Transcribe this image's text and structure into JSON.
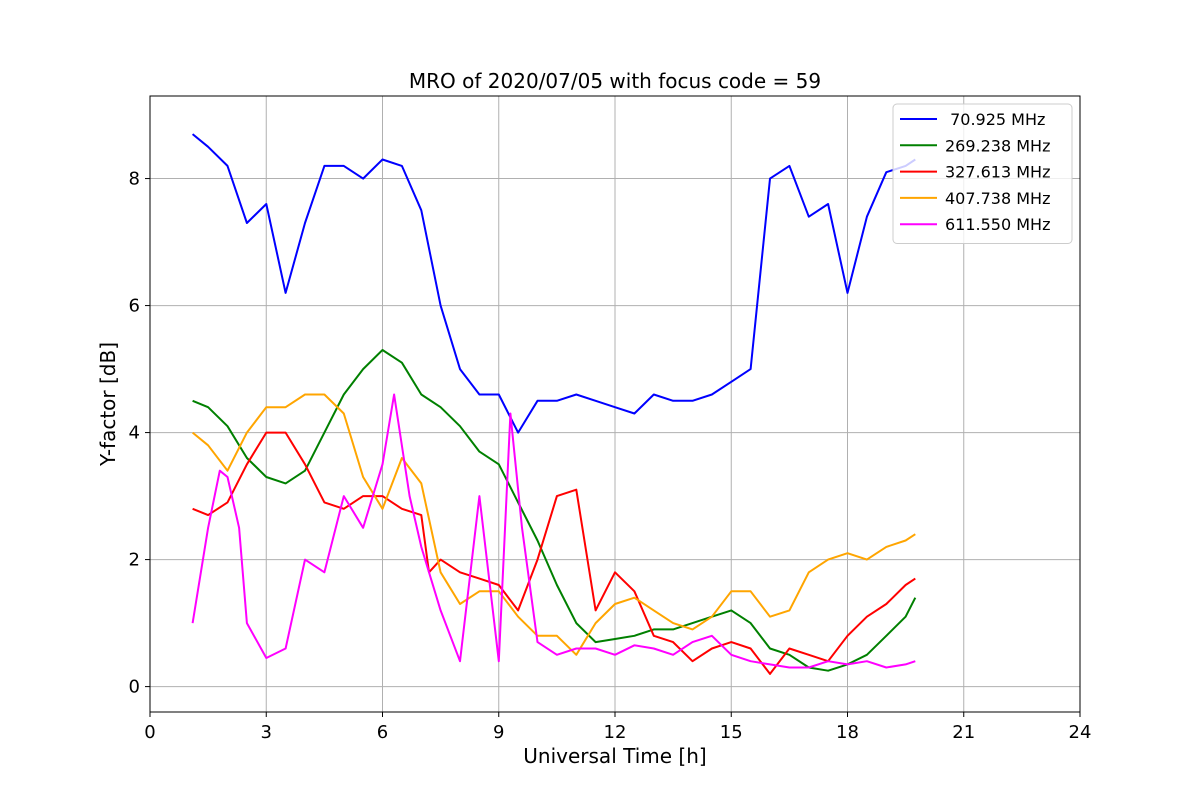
{
  "chart_data": {
    "type": "line",
    "title": "MRO of 2020/07/05 with focus code = 59",
    "xlabel": "Universal Time [h]",
    "ylabel": "Y-factor [dB]",
    "xlim": [
      0,
      24
    ],
    "ylim": [
      -0.4,
      9.3
    ],
    "xticks": [
      0,
      3,
      6,
      9,
      12,
      15,
      18,
      21,
      24
    ],
    "yticks": [
      0,
      2,
      4,
      6,
      8
    ],
    "grid": true,
    "legend_position": "top-right",
    "series": [
      {
        "name": " 70.925 MHz",
        "color": "#0000ff",
        "x": [
          1.1,
          1.5,
          2.0,
          2.5,
          3.0,
          3.5,
          4.0,
          4.5,
          5.0,
          5.5,
          6.0,
          6.5,
          7.0,
          7.5,
          8.0,
          8.5,
          9.0,
          9.5,
          10.0,
          10.5,
          11.0,
          11.5,
          12.0,
          12.5,
          13.0,
          13.5,
          14.0,
          14.5,
          15.0,
          15.5,
          16.0,
          16.5,
          17.0,
          17.5,
          18.0,
          18.5,
          19.0,
          19.5,
          19.75
        ],
        "y": [
          8.7,
          8.5,
          8.2,
          7.3,
          7.6,
          6.2,
          7.3,
          8.2,
          8.2,
          8.0,
          8.3,
          8.2,
          7.5,
          6.0,
          5.0,
          4.6,
          4.6,
          4.0,
          4.5,
          4.5,
          4.6,
          4.5,
          4.4,
          4.3,
          4.6,
          4.5,
          4.5,
          4.6,
          4.8,
          5.0,
          8.0,
          8.2,
          7.4,
          7.6,
          6.2,
          7.4,
          8.1,
          8.2,
          8.3
        ]
      },
      {
        "name": "269.238 MHz",
        "color": "#008000",
        "x": [
          1.1,
          1.5,
          2.0,
          2.5,
          3.0,
          3.5,
          4.0,
          4.5,
          5.0,
          5.5,
          6.0,
          6.5,
          7.0,
          7.5,
          8.0,
          8.5,
          9.0,
          9.5,
          10.0,
          10.5,
          11.0,
          11.5,
          12.0,
          12.5,
          13.0,
          13.5,
          14.0,
          14.5,
          15.0,
          15.5,
          16.0,
          16.5,
          17.0,
          17.5,
          18.0,
          18.5,
          19.0,
          19.5,
          19.75
        ],
        "y": [
          4.5,
          4.4,
          4.1,
          3.6,
          3.3,
          3.2,
          3.4,
          4.0,
          4.6,
          5.0,
          5.3,
          5.1,
          4.6,
          4.4,
          4.1,
          3.7,
          3.5,
          2.9,
          2.3,
          1.6,
          1.0,
          0.7,
          0.75,
          0.8,
          0.9,
          0.9,
          1.0,
          1.1,
          1.2,
          1.0,
          0.6,
          0.5,
          0.3,
          0.25,
          0.35,
          0.5,
          0.8,
          1.1,
          1.4
        ]
      },
      {
        "name": "327.613 MHz",
        "color": "#ff0000",
        "x": [
          1.1,
          1.5,
          2.0,
          2.5,
          3.0,
          3.5,
          4.0,
          4.5,
          5.0,
          5.5,
          6.0,
          6.5,
          7.0,
          7.2,
          7.5,
          8.0,
          8.5,
          9.0,
          9.5,
          10.0,
          10.5,
          11.0,
          11.5,
          12.0,
          12.5,
          13.0,
          13.5,
          14.0,
          14.5,
          15.0,
          15.5,
          16.0,
          16.5,
          17.0,
          17.5,
          18.0,
          18.5,
          19.0,
          19.5,
          19.75
        ],
        "y": [
          2.8,
          2.7,
          2.9,
          3.5,
          4.0,
          4.0,
          3.5,
          2.9,
          2.8,
          3.0,
          3.0,
          2.8,
          2.7,
          1.8,
          2.0,
          1.8,
          1.7,
          1.6,
          1.2,
          2.0,
          3.0,
          3.1,
          1.2,
          1.8,
          1.5,
          0.8,
          0.7,
          0.4,
          0.6,
          0.7,
          0.6,
          0.2,
          0.6,
          0.5,
          0.4,
          0.8,
          1.1,
          1.3,
          1.6,
          1.7
        ]
      },
      {
        "name": "407.738 MHz",
        "color": "#ffa500",
        "x": [
          1.1,
          1.5,
          2.0,
          2.5,
          3.0,
          3.5,
          4.0,
          4.5,
          5.0,
          5.5,
          6.0,
          6.5,
          7.0,
          7.5,
          8.0,
          8.5,
          9.0,
          9.5,
          10.0,
          10.5,
          11.0,
          11.5,
          12.0,
          12.5,
          13.0,
          13.5,
          14.0,
          14.5,
          15.0,
          15.5,
          16.0,
          16.5,
          17.0,
          17.5,
          18.0,
          18.5,
          19.0,
          19.5,
          19.75
        ],
        "y": [
          4.0,
          3.8,
          3.4,
          4.0,
          4.4,
          4.4,
          4.6,
          4.6,
          4.3,
          3.3,
          2.8,
          3.6,
          3.2,
          1.8,
          1.3,
          1.5,
          1.5,
          1.1,
          0.8,
          0.8,
          0.5,
          1.0,
          1.3,
          1.4,
          1.2,
          1.0,
          0.9,
          1.1,
          1.5,
          1.5,
          1.1,
          1.2,
          1.8,
          2.0,
          2.1,
          2.0,
          2.2,
          2.3,
          2.4
        ]
      },
      {
        "name": "611.550 MHz",
        "color": "#ff00ff",
        "x": [
          1.1,
          1.5,
          1.8,
          2.0,
          2.3,
          2.5,
          3.0,
          3.5,
          4.0,
          4.5,
          5.0,
          5.5,
          6.0,
          6.3,
          6.7,
          7.0,
          7.5,
          8.0,
          8.5,
          9.0,
          9.3,
          9.6,
          10.0,
          10.5,
          11.0,
          11.5,
          12.0,
          12.5,
          13.0,
          13.5,
          14.0,
          14.5,
          15.0,
          15.5,
          16.0,
          16.5,
          17.0,
          17.5,
          18.0,
          18.5,
          19.0,
          19.5,
          19.75
        ],
        "y": [
          1.0,
          2.5,
          3.4,
          3.3,
          2.5,
          1.0,
          0.45,
          0.6,
          2.0,
          1.8,
          3.0,
          2.5,
          3.5,
          4.6,
          3.0,
          2.2,
          1.2,
          0.4,
          3.0,
          0.4,
          4.3,
          2.5,
          0.7,
          0.5,
          0.6,
          0.6,
          0.5,
          0.65,
          0.6,
          0.5,
          0.7,
          0.8,
          0.5,
          0.4,
          0.35,
          0.3,
          0.3,
          0.4,
          0.35,
          0.4,
          0.3,
          0.35,
          0.4
        ]
      }
    ]
  }
}
